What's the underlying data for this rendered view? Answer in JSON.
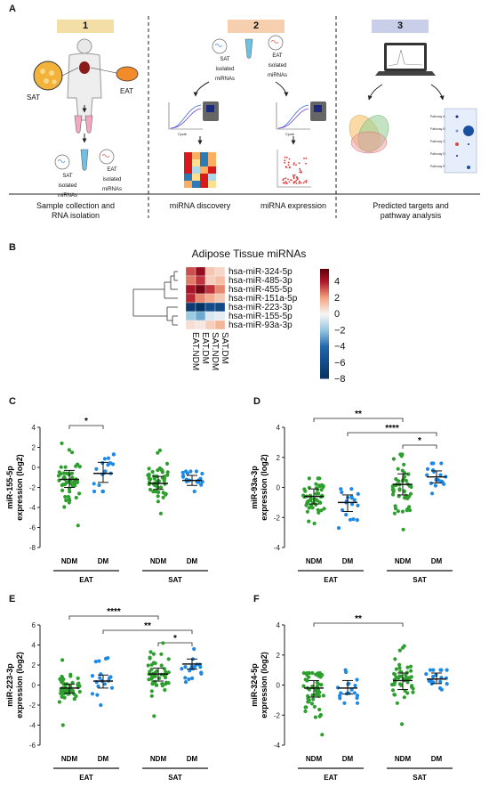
{
  "panel_a": {
    "letter": "A",
    "steps": [
      {
        "num": "1",
        "color": "#f3dfa6",
        "caption_lines": [
          "Sample collection and",
          "RNA isolation"
        ]
      },
      {
        "num": "2",
        "color": "#f5cfae",
        "caption_lines": [
          "miRNA discovery",
          "miRNA expression"
        ]
      },
      {
        "num": "3",
        "color": "#c9cfe8",
        "caption_lines": [
          "Predicted targets and",
          "pathway analysis"
        ]
      }
    ],
    "labels": {
      "sat": "SAT",
      "eat": "EAT",
      "sat_isolated": [
        "SAT",
        "isolated miRNAs"
      ],
      "eat_isolated": [
        "EAT",
        "isolated miRNAs"
      ],
      "cycle": "Cycle"
    },
    "pathway_labels": [
      "Pathway A",
      "Pathway B",
      "Pathway C",
      "Pathway D",
      "Pathway E"
    ],
    "heatmap_colors": [
      "#d7191c",
      "#fdae61",
      "#2c7bb6",
      "#fdae61",
      "#d7191c",
      "#fee090",
      "#2c7bb6",
      "#fdae61",
      "#d7191c",
      "#abd9e9",
      "#fdae61",
      "#d7191c",
      "#2c7bb6",
      "#fee090",
      "#d7191c",
      "#abd9e9",
      "#fdae61",
      "#2c7bb6",
      "#d7191c",
      "#fee090"
    ]
  },
  "panel_b": {
    "letter": "B",
    "title": "Adipose Tissue miRNAs",
    "rows": [
      "hsa-miR-324-5p",
      "hsa-miR-485-3p",
      "hsa-miR-455-5p",
      "hsa-miR-151a-5p",
      "hsa-miR-223-3p",
      "hsa-miR-155-5p",
      "hsa-miR-93a-3p"
    ],
    "columns": [
      "EAT.NDM",
      "EAT.DM",
      "SAT.NDM",
      "SAT.DM"
    ],
    "matrix": [
      [
        3.2,
        4.6,
        1.2,
        0.8
      ],
      [
        2.6,
        3.6,
        1.0,
        1.4
      ],
      [
        4.2,
        5.2,
        3.6,
        2.4
      ],
      [
        3.8,
        2.4,
        1.8,
        1.2
      ],
      [
        -7.2,
        -7.8,
        -5.8,
        -6.2
      ],
      [
        -1.8,
        -2.6,
        -0.6,
        -0.4
      ],
      [
        0.6,
        0.4,
        1.0,
        1.6
      ]
    ],
    "legend_ticks": [
      "4",
      "2",
      "0",
      "−2",
      "−4",
      "−6",
      "−8"
    ],
    "legend_range": [
      -8,
      5.5
    ]
  },
  "dot_panels": [
    {
      "letter": "C",
      "ylabel_lines": [
        "miR-155-5p",
        "expression (log2)"
      ],
      "yticks": [
        "4",
        "2",
        "0",
        "-2",
        "-4",
        "-6",
        "-8"
      ],
      "groups": [
        {
          "tissue": "EAT",
          "label": "NDM",
          "color": "#2e9e2e",
          "n": 50,
          "median": -1.2,
          "q1": -2.0,
          "q3": -0.3,
          "min": -5.8,
          "max": 2.4
        },
        {
          "tissue": "EAT",
          "label": "DM",
          "color": "#1e88e5",
          "n": 18,
          "median": -0.6,
          "q1": -1.5,
          "q3": 0.5,
          "min": -2.4,
          "max": 1.3
        },
        {
          "tissue": "SAT",
          "label": "NDM",
          "color": "#2e9e2e",
          "n": 50,
          "median": -1.6,
          "q1": -2.2,
          "q3": -0.9,
          "min": -4.6,
          "max": 1.7
        },
        {
          "tissue": "SAT",
          "label": "DM",
          "color": "#1e88e5",
          "n": 18,
          "median": -1.3,
          "q1": -1.8,
          "q3": -0.8,
          "min": -2.4,
          "max": -0.4
        }
      ],
      "tissues": [
        "EAT",
        "SAT"
      ],
      "sig": [
        {
          "from": 0,
          "to": 1,
          "label": "*"
        }
      ]
    },
    {
      "letter": "D",
      "ylabel_lines": [
        "miR-93a-3p",
        "expression (log2)"
      ],
      "yticks": [
        "4",
        "2",
        "0",
        "-2",
        "-4"
      ],
      "groups": [
        {
          "tissue": "EAT",
          "label": "NDM",
          "color": "#2e9e2e",
          "n": 50,
          "median": -0.6,
          "q1": -1.1,
          "q3": -0.1,
          "min": -2.4,
          "max": 0.6
        },
        {
          "tissue": "EAT",
          "label": "DM",
          "color": "#1e88e5",
          "n": 18,
          "median": -1.0,
          "q1": -1.6,
          "q3": -0.5,
          "min": -2.7,
          "max": -0.1
        },
        {
          "tissue": "SAT",
          "label": "NDM",
          "color": "#2e9e2e",
          "n": 50,
          "median": 0.2,
          "q1": -0.5,
          "q3": 0.9,
          "min": -2.8,
          "max": 2.2
        },
        {
          "tissue": "SAT",
          "label": "DM",
          "color": "#1e88e5",
          "n": 18,
          "median": 0.7,
          "q1": 0.3,
          "q3": 1.1,
          "min": -0.4,
          "max": 1.6
        }
      ],
      "tissues": [
        "EAT",
        "SAT"
      ],
      "sig": [
        {
          "from": 0,
          "to": 2,
          "label": "**"
        },
        {
          "from": 1,
          "to": 3,
          "label": "****"
        },
        {
          "from": 2,
          "to": 3,
          "label": "*"
        }
      ]
    },
    {
      "letter": "E",
      "ylabel_lines": [
        "miR-223-3p",
        "expression (log2)"
      ],
      "yticks": [
        "6",
        "4",
        "2",
        "0",
        "-2",
        "-4",
        "-6"
      ],
      "groups": [
        {
          "tissue": "EAT",
          "label": "NDM",
          "color": "#2e9e2e",
          "n": 50,
          "median": -0.3,
          "q1": -0.8,
          "q3": 0.1,
          "min": -4.0,
          "max": 2.5
        },
        {
          "tissue": "EAT",
          "label": "DM",
          "color": "#1e88e5",
          "n": 18,
          "median": 0.4,
          "q1": -0.3,
          "q3": 1.0,
          "min": -2.0,
          "max": 2.7
        },
        {
          "tissue": "SAT",
          "label": "NDM",
          "color": "#2e9e2e",
          "n": 50,
          "median": 1.1,
          "q1": 0.4,
          "q3": 1.7,
          "min": -3.1,
          "max": 4.2
        },
        {
          "tissue": "SAT",
          "label": "DM",
          "color": "#1e88e5",
          "n": 18,
          "median": 2.1,
          "q1": 1.6,
          "q3": 2.6,
          "min": 0.3,
          "max": 3.6
        }
      ],
      "tissues": [
        "EAT",
        "SAT"
      ],
      "sig": [
        {
          "from": 0,
          "to": 2,
          "label": "****"
        },
        {
          "from": 1,
          "to": 3,
          "label": "**"
        },
        {
          "from": 2,
          "to": 3,
          "label": "*"
        }
      ]
    },
    {
      "letter": "F",
      "ylabel_lines": [
        "miR-324-5p",
        "expression (log2)"
      ],
      "yticks": [
        "4",
        "2",
        "0",
        "-2",
        "-4"
      ],
      "groups": [
        {
          "tissue": "EAT",
          "label": "NDM",
          "color": "#2e9e2e",
          "n": 50,
          "median": -0.2,
          "q1": -0.8,
          "q3": 0.3,
          "min": -3.3,
          "max": 0.8
        },
        {
          "tissue": "EAT",
          "label": "DM",
          "color": "#1e88e5",
          "n": 18,
          "median": -0.2,
          "q1": -0.6,
          "q3": 0.3,
          "min": -1.2,
          "max": 1.0
        },
        {
          "tissue": "SAT",
          "label": "NDM",
          "color": "#2e9e2e",
          "n": 50,
          "median": 0.3,
          "q1": -0.3,
          "q3": 0.8,
          "min": -2.6,
          "max": 2.6
        },
        {
          "tissue": "SAT",
          "label": "DM",
          "color": "#1e88e5",
          "n": 18,
          "median": 0.4,
          "q1": 0.1,
          "q3": 0.8,
          "min": -0.3,
          "max": 1.0
        }
      ],
      "tissues": [
        "EAT",
        "SAT"
      ],
      "sig": [
        {
          "from": 0,
          "to": 2,
          "label": "**"
        }
      ]
    }
  ],
  "chart_data": [
    {
      "type": "heatmap",
      "title": "Adipose Tissue miRNAs",
      "rows": [
        "hsa-miR-324-5p",
        "hsa-miR-485-3p",
        "hsa-miR-455-5p",
        "hsa-miR-151a-5p",
        "hsa-miR-223-3p",
        "hsa-miR-155-5p",
        "hsa-miR-93a-3p"
      ],
      "columns": [
        "EAT.NDM",
        "EAT.DM",
        "SAT.NDM",
        "SAT.DM"
      ],
      "color_range": [
        -8,
        5
      ]
    },
    {
      "type": "scatter",
      "ylabel": "miR-155-5p expression (log2)",
      "ylim": [
        -8,
        4
      ],
      "categories": [
        "EAT NDM",
        "EAT DM",
        "SAT NDM",
        "SAT DM"
      ],
      "medians": [
        -1.2,
        -0.6,
        -1.6,
        -1.3
      ]
    },
    {
      "type": "scatter",
      "ylabel": "miR-93a-3p expression (log2)",
      "ylim": [
        -4,
        4
      ],
      "categories": [
        "EAT NDM",
        "EAT DM",
        "SAT NDM",
        "SAT DM"
      ],
      "medians": [
        -0.6,
        -1.0,
        0.2,
        0.7
      ]
    },
    {
      "type": "scatter",
      "ylabel": "miR-223-3p expression (log2)",
      "ylim": [
        -6,
        6
      ],
      "categories": [
        "EAT NDM",
        "EAT DM",
        "SAT NDM",
        "SAT DM"
      ],
      "medians": [
        -0.3,
        0.4,
        1.1,
        2.1
      ]
    },
    {
      "type": "scatter",
      "ylabel": "miR-324-5p expression (log2)",
      "ylim": [
        -4,
        4
      ],
      "categories": [
        "EAT NDM",
        "EAT DM",
        "SAT NDM",
        "SAT DM"
      ],
      "medians": [
        -0.2,
        -0.2,
        0.3,
        0.4
      ]
    }
  ]
}
